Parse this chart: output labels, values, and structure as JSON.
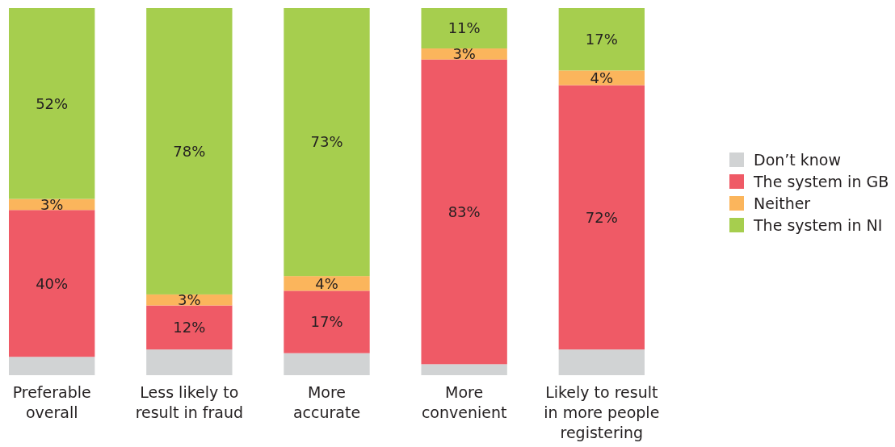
{
  "chart_data": {
    "type": "bar",
    "stacked": true,
    "categories": [
      "Preferable\noverall",
      "Less likely to\nresult in fraud",
      "More\naccurate",
      "More\nconvenient",
      "Likely to result\nin more people\nregistering"
    ],
    "series": [
      {
        "name": "Don’t know",
        "color": "#d1d3d4",
        "values": [
          5,
          7,
          6,
          3,
          7
        ],
        "value_labels": [
          null,
          null,
          null,
          null,
          null
        ]
      },
      {
        "name": "The system in GB",
        "color": "#ef5a66",
        "values": [
          40,
          12,
          17,
          83,
          72
        ],
        "value_labels": [
          "40%",
          "12%",
          "17%",
          "83%",
          "72%"
        ]
      },
      {
        "name": "Neither",
        "color": "#fbb55c",
        "values": [
          3,
          3,
          4,
          3,
          4
        ],
        "value_labels": [
          "3%",
          "3%",
          "4%",
          "3%",
          "4%"
        ]
      },
      {
        "name": "The system in NI",
        "color": "#a6ce4e",
        "values": [
          52,
          78,
          73,
          11,
          17
        ],
        "value_labels": [
          "52%",
          "78%",
          "73%",
          "11%",
          "17%"
        ]
      }
    ],
    "legend": "right"
  }
}
